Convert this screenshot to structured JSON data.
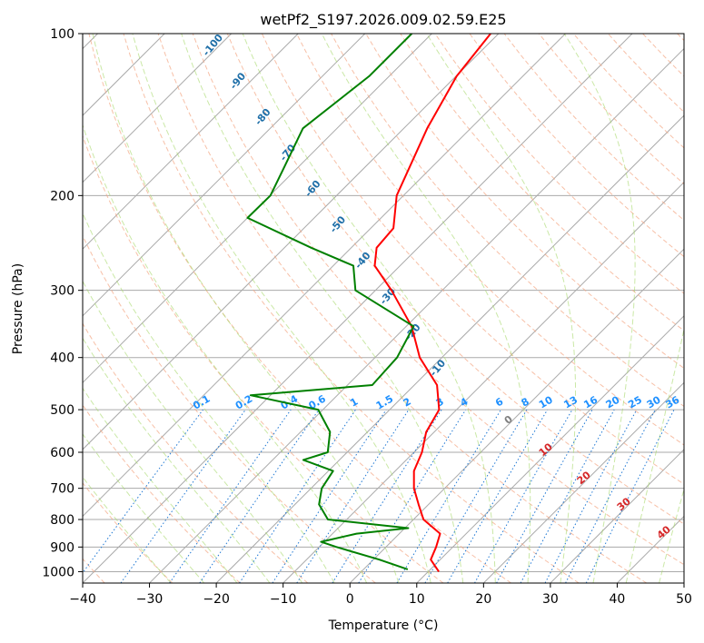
{
  "chart_data": {
    "type": "line",
    "title": "wetPf2_S197.2026.009.02.59.E25",
    "xlabel": "Temperature (°C)",
    "ylabel": "Pressure (hPa)",
    "xlim": [
      -40,
      50
    ],
    "ylim": [
      1050,
      100
    ],
    "y_scale": "log",
    "x_ticks": [
      "−40",
      "−30",
      "−20",
      "−10",
      "0",
      "10",
      "20",
      "30",
      "40",
      "50"
    ],
    "y_ticks": [
      "100",
      "200",
      "300",
      "400",
      "500",
      "600",
      "700",
      "800",
      "900",
      "1000"
    ],
    "y_tick_values": [
      100,
      200,
      300,
      400,
      500,
      600,
      700,
      800,
      900,
      1000
    ],
    "grid": true,
    "series": [
      {
        "kind": "temperature",
        "color": "#ff0000",
        "points": [
          [
            1000,
            11.6
          ],
          [
            950,
            8.6
          ],
          [
            900,
            7.5
          ],
          [
            850,
            6.1
          ],
          [
            800,
            1.5
          ],
          [
            750,
            -1.5
          ],
          [
            700,
            -4.6
          ],
          [
            650,
            -7.2
          ],
          [
            600,
            -8.8
          ],
          [
            550,
            -11.2
          ],
          [
            500,
            -12.6
          ],
          [
            450,
            -16.6
          ],
          [
            400,
            -23.3
          ],
          [
            350,
            -29.2
          ],
          [
            300,
            -37.6
          ],
          [
            270,
            -43.8
          ],
          [
            250,
            -46.2
          ],
          [
            230,
            -46.6
          ],
          [
            200,
            -51.0
          ],
          [
            150,
            -56.5
          ],
          [
            120,
            -59.9
          ],
          [
            100,
            -61.2
          ]
        ]
      },
      {
        "kind": "dewpoint",
        "color": "#008000",
        "points": [
          [
            990,
            6.6
          ],
          [
            950,
            0.9
          ],
          [
            900,
            -7.4
          ],
          [
            880,
            -10.5
          ],
          [
            850,
            -6.4
          ],
          [
            830,
            0.5
          ],
          [
            800,
            -12.8
          ],
          [
            750,
            -16.4
          ],
          [
            700,
            -18.4
          ],
          [
            650,
            -19.3
          ],
          [
            620,
            -25.4
          ],
          [
            600,
            -22.9
          ],
          [
            550,
            -25.6
          ],
          [
            500,
            -30.7
          ],
          [
            470,
            -43.0
          ],
          [
            450,
            -26.3
          ],
          [
            400,
            -26.7
          ],
          [
            350,
            -28.9
          ],
          [
            300,
            -43.0
          ],
          [
            270,
            -47.0
          ],
          [
            250,
            -56.0
          ],
          [
            220,
            -70.0
          ],
          [
            200,
            -69.9
          ],
          [
            180,
            -71.8
          ],
          [
            150,
            -75.1
          ],
          [
            120,
            -73.0
          ],
          [
            100,
            -73.0
          ]
        ]
      }
    ],
    "dry_adiabat_labels": [
      "-100",
      "-90",
      "-80",
      "-70",
      "-60",
      "-50",
      "-40",
      "-30",
      "-20",
      "-10"
    ],
    "mixing_ratio_labels": [
      "0.1",
      "0.2",
      "0.4",
      "0.6",
      "1",
      "1.5",
      "2",
      "3",
      "4",
      "6",
      "8",
      "10",
      "13",
      "16",
      "20",
      "25",
      "30",
      "36"
    ],
    "moist_adiabat_labels": [
      "0",
      "10",
      "20",
      "30",
      "40"
    ],
    "colors": {
      "isotherm": "#aaaaaa",
      "dry_adiabat": "#f4a582",
      "moist_adiabat": "#a6d96a",
      "mixing_ratio": "#1f78d4",
      "dry_label": "#1f6fa8",
      "moist_label": "#d62728",
      "mixing_label": "#1e90ff",
      "zero_label": "#808080"
    }
  }
}
